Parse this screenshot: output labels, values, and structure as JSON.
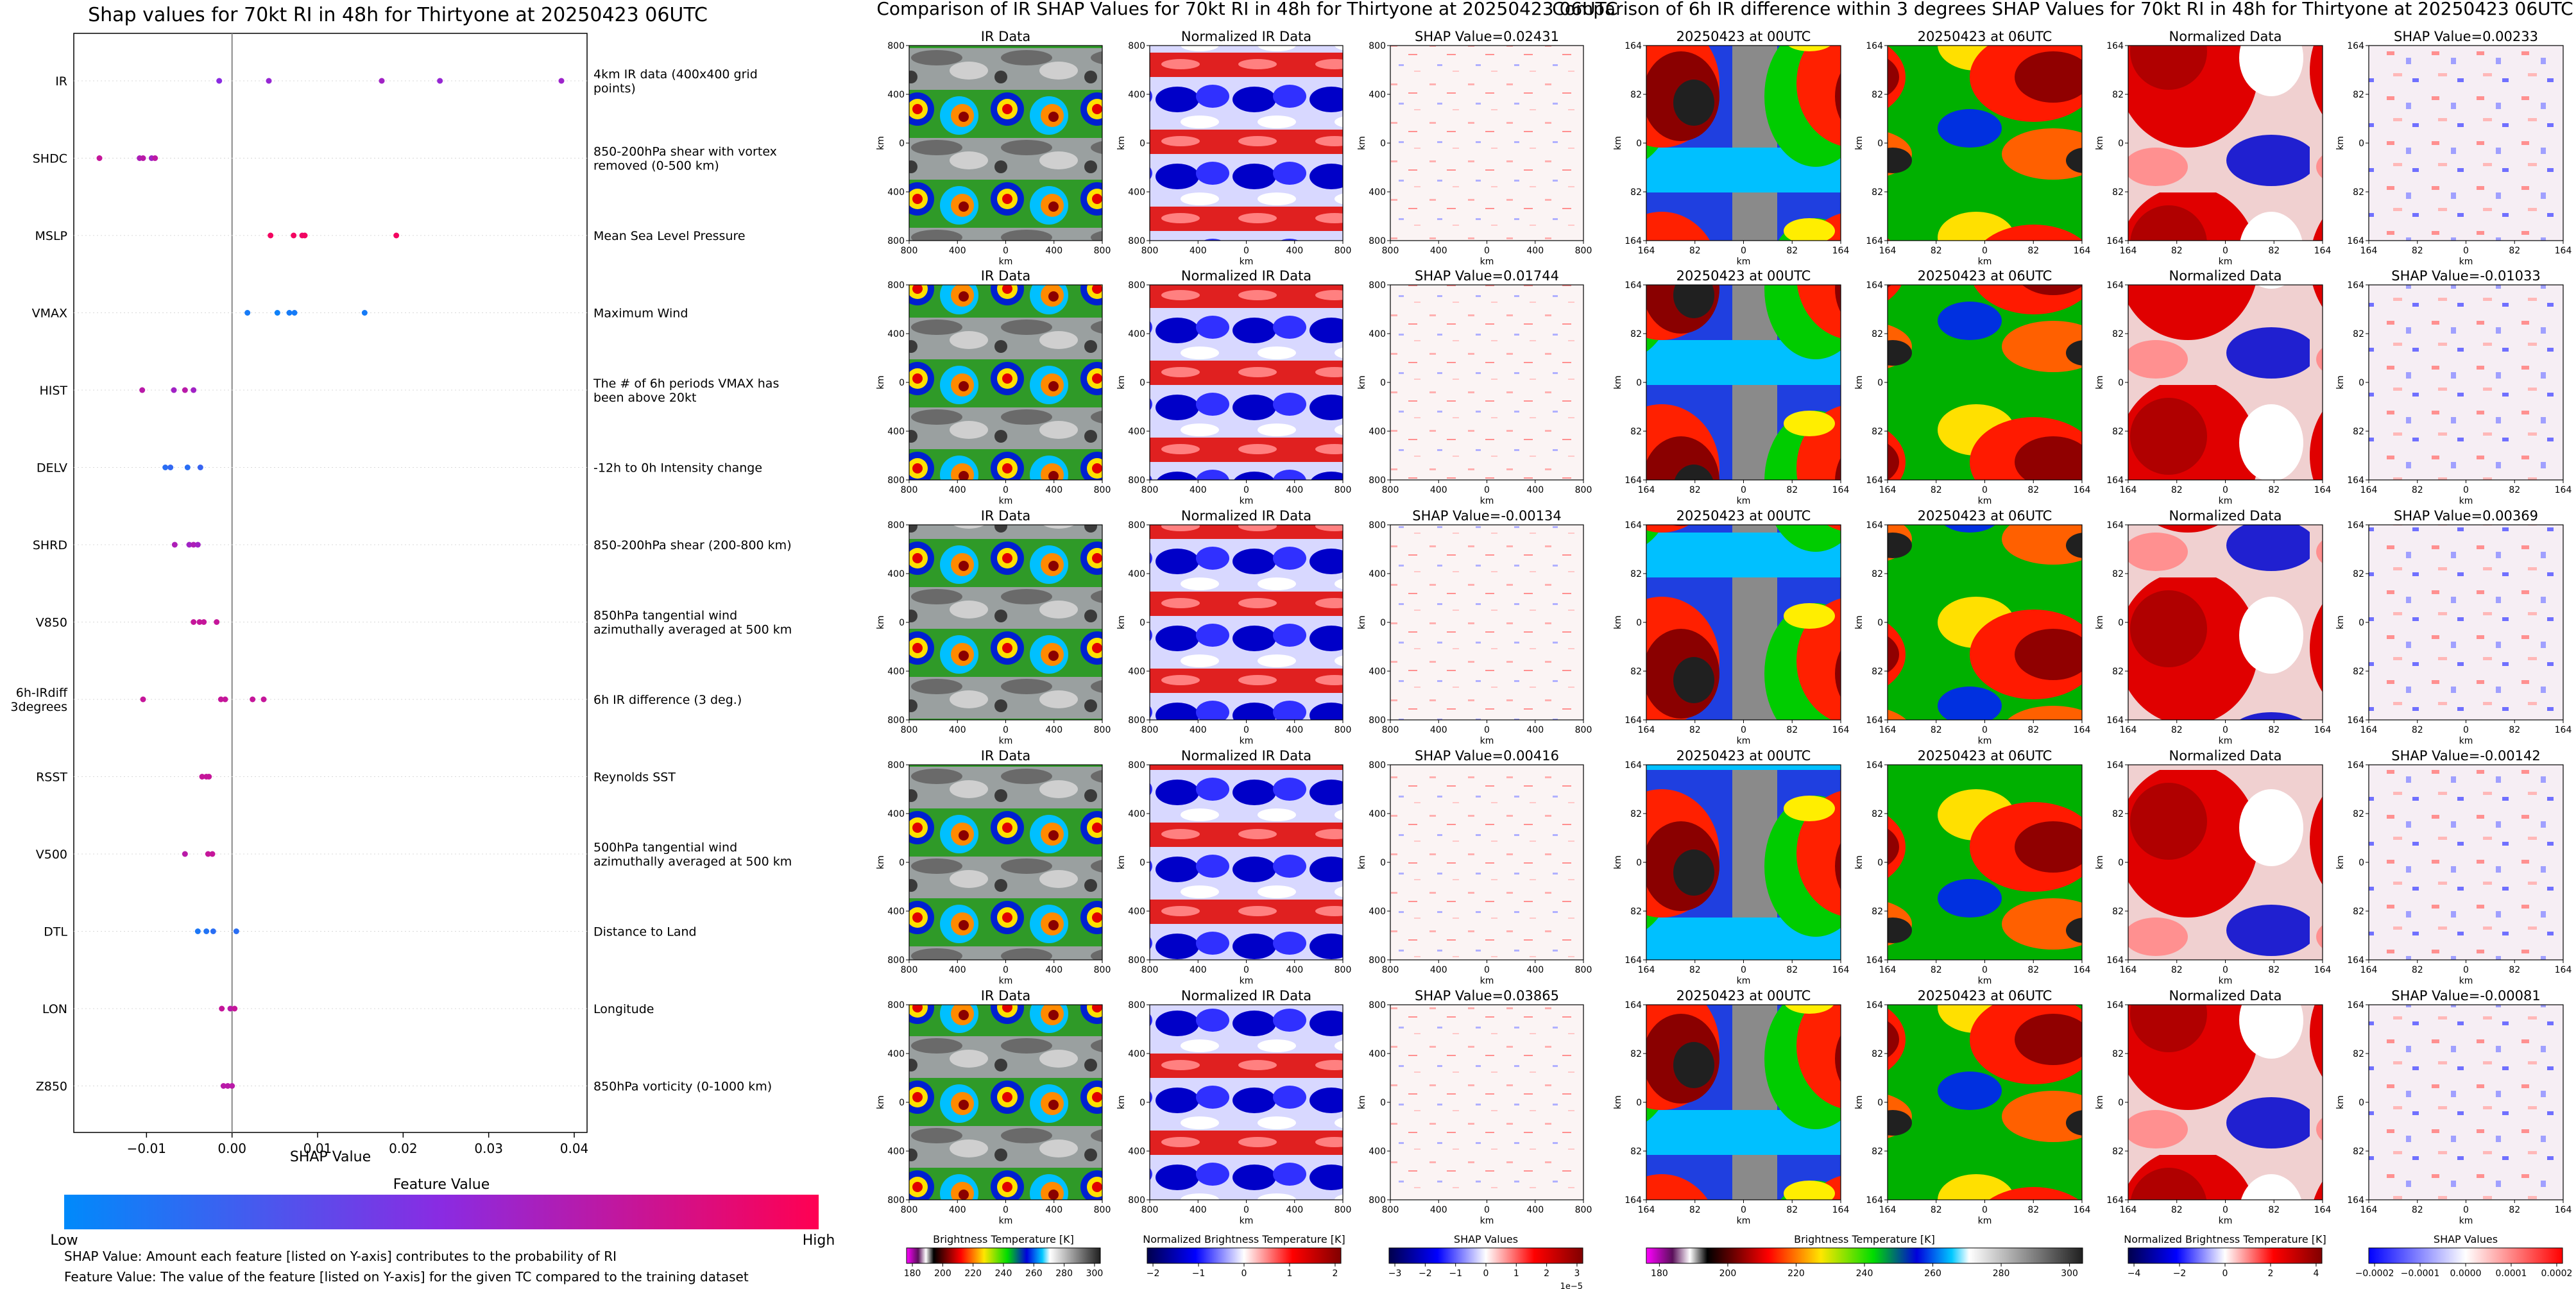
{
  "chart_data": [
    {
      "type": "scatter",
      "title": "Shap values for 70kt RI in 48h for Thirtyone at 20250423 06UTC",
      "xlabel": "SHAP Value",
      "xlim": [
        -0.0185,
        0.0415
      ],
      "xticks": [
        -0.01,
        0.0,
        0.01,
        0.02,
        0.03,
        0.04
      ],
      "xtick_labels": [
        "−0.01",
        "0.00",
        "0.01",
        "0.02",
        "0.03",
        "0.04"
      ],
      "zero_line": 0.0,
      "features": [
        {
          "name": "IR",
          "description": "4km IR data (400x400 grid points)",
          "points": [
            {
              "x": -0.0015,
              "c": 0.5
            },
            {
              "x": 0.0043,
              "c": 0.55
            },
            {
              "x": 0.0175,
              "c": 0.6
            },
            {
              "x": 0.0243,
              "c": 0.55
            },
            {
              "x": 0.0385,
              "c": 0.58
            }
          ]
        },
        {
          "name": "SHDC",
          "description": "850-200hPa shear with vortex removed (0-500 km)",
          "points": [
            {
              "x": -0.0155,
              "c": 0.75
            },
            {
              "x": -0.0108,
              "c": 0.65
            },
            {
              "x": -0.0104,
              "c": 0.7
            },
            {
              "x": -0.0094,
              "c": 0.6
            },
            {
              "x": -0.009,
              "c": 0.72
            }
          ]
        },
        {
          "name": "MSLP",
          "description": "Mean Sea Level Pressure",
          "points": [
            {
              "x": 0.0045,
              "c": 0.95
            },
            {
              "x": 0.0072,
              "c": 0.95
            },
            {
              "x": 0.0082,
              "c": 0.92
            },
            {
              "x": 0.0085,
              "c": 0.95
            },
            {
              "x": 0.0192,
              "c": 0.95
            }
          ]
        },
        {
          "name": "VMAX",
          "description": "Maximum Wind",
          "points": [
            {
              "x": 0.0018,
              "c": 0.08
            },
            {
              "x": 0.0053,
              "c": 0.05
            },
            {
              "x": 0.0067,
              "c": 0.08
            },
            {
              "x": 0.0073,
              "c": 0.08
            },
            {
              "x": 0.0155,
              "c": 0.08
            }
          ]
        },
        {
          "name": "HIST",
          "description": "The # of 6h periods VMAX has been above 20kt",
          "points": [
            {
              "x": -0.0105,
              "c": 0.7
            },
            {
              "x": -0.0068,
              "c": 0.6
            },
            {
              "x": -0.0055,
              "c": 0.7
            },
            {
              "x": -0.0045,
              "c": 0.6
            }
          ]
        },
        {
          "name": "DELV",
          "description": "-12h to 0h Intensity change",
          "points": [
            {
              "x": -0.0078,
              "c": 0.15
            },
            {
              "x": -0.0072,
              "c": 0.18
            },
            {
              "x": -0.0052,
              "c": 0.15
            },
            {
              "x": -0.0037,
              "c": 0.2
            }
          ]
        },
        {
          "name": "SHRD",
          "description": "850-200hPa shear (200-800 km)",
          "points": [
            {
              "x": -0.0067,
              "c": 0.65
            },
            {
              "x": -0.005,
              "c": 0.6
            },
            {
              "x": -0.0045,
              "c": 0.65
            },
            {
              "x": -0.004,
              "c": 0.6
            }
          ]
        },
        {
          "name": "V850",
          "description": "850hPa tangential wind azimuthally averaged at 500 km",
          "points": [
            {
              "x": -0.0045,
              "c": 0.75
            },
            {
              "x": -0.0038,
              "c": 0.75
            },
            {
              "x": -0.0033,
              "c": 0.75
            },
            {
              "x": -0.0018,
              "c": 0.75
            }
          ]
        },
        {
          "name": "6h-IRdiff 3degrees",
          "description": "6h IR difference (3 deg.)",
          "points": [
            {
              "x": -0.0104,
              "c": 0.75
            },
            {
              "x": -0.0013,
              "c": 0.75
            },
            {
              "x": -0.0008,
              "c": 0.75
            },
            {
              "x": 0.0024,
              "c": 0.75
            },
            {
              "x": 0.0037,
              "c": 0.75
            }
          ]
        },
        {
          "name": "RSST",
          "description": "Reynolds SST",
          "points": [
            {
              "x": -0.0035,
              "c": 0.75
            },
            {
              "x": -0.003,
              "c": 0.75
            },
            {
              "x": -0.0027,
              "c": 0.75
            }
          ]
        },
        {
          "name": "V500",
          "description": "500hPa tangential wind azimuthally averaged at 500 km",
          "points": [
            {
              "x": -0.0055,
              "c": 0.7
            },
            {
              "x": -0.0028,
              "c": 0.75
            },
            {
              "x": -0.0023,
              "c": 0.75
            }
          ]
        },
        {
          "name": "DTL",
          "description": "Distance to Land",
          "points": [
            {
              "x": -0.004,
              "c": 0.1
            },
            {
              "x": -0.003,
              "c": 0.12
            },
            {
              "x": -0.0022,
              "c": 0.15
            },
            {
              "x": 0.0005,
              "c": 0.15
            }
          ]
        },
        {
          "name": "LON",
          "description": "Longitude",
          "points": [
            {
              "x": -0.0012,
              "c": 0.75
            },
            {
              "x": -0.0002,
              "c": 0.7
            },
            {
              "x": 0.0003,
              "c": 0.75
            }
          ]
        },
        {
          "name": "Z850",
          "description": "850hPa vorticity (0-1000 km)",
          "points": [
            {
              "x": -0.001,
              "c": 0.7
            },
            {
              "x": -0.0005,
              "c": 0.7
            },
            {
              "x": 0.0,
              "c": 0.7
            }
          ]
        }
      ],
      "colorbar": {
        "title": "Feature Value",
        "low_label": "Low",
        "high_label": "High",
        "low_color": "#008afb",
        "mid_color": "#8a2be2",
        "high_color": "#ff0052"
      },
      "notes": [
        "SHAP Value: Amount each feature [listed on Y-axis] contributes to the probability of RI",
        "Feature Value: The value of the feature [listed on Y-axis] for the given TC compared to the training dataset"
      ]
    },
    {
      "type": "heatmap",
      "title": "Comparison of IR SHAP Values for 70kt RI in 48h for Thirtyone at 20250423 06UTC",
      "panel_titles": [
        "IR Data",
        "Normalized IR Data"
      ],
      "shap_titles": [
        "SHAP Value=0.02431",
        "SHAP Value=0.01744",
        "SHAP Value=-0.00134",
        "SHAP Value=0.00416",
        "SHAP Value=0.03865"
      ],
      "xlabel": "km",
      "ylabel": "km",
      "xticks": [
        "800",
        "400",
        "0",
        "400",
        "800"
      ],
      "yticks": [
        "800",
        "400",
        "0",
        "400",
        "800"
      ],
      "colorbars": [
        {
          "label": "Brightness Temperature [K]",
          "ticks": [
            "180",
            "200",
            "220",
            "240",
            "260",
            "280",
            "300"
          ]
        },
        {
          "label": "Normalized Brightness Temperature [K]",
          "ticks": [
            "−2",
            "−1",
            "0",
            "1",
            "2"
          ]
        },
        {
          "label": "SHAP Values",
          "ticks": [
            "−3",
            "−2",
            "−1",
            "0",
            "1",
            "2",
            "3"
          ],
          "offset": "1e−5"
        }
      ]
    },
    {
      "type": "heatmap",
      "title": "Comparison of 6h IR difference within 3 degrees SHAP Values for 70kt RI in 48h for Thirtyone at 20250423 06UTC",
      "panel_titles": [
        "20250423 at 00UTC",
        "20250423 at 06UTC",
        "Normalized Data"
      ],
      "shap_titles": [
        "SHAP Value=0.00233",
        "SHAP Value=-0.01033",
        "SHAP Value=0.00369",
        "SHAP Value=-0.00142",
        "SHAP Value=-0.00081"
      ],
      "xlabel": "km",
      "ylabel": "km",
      "xticks": [
        "164",
        "82",
        "0",
        "82",
        "164"
      ],
      "yticks": [
        "164",
        "82",
        "0",
        "82",
        "164"
      ],
      "colorbars": [
        {
          "label": "Brightness Temperature [K]",
          "ticks": [
            "180",
            "200",
            "220",
            "240",
            "260",
            "280",
            "300"
          ]
        },
        {
          "label": "Normalized Brightness Temperature [K]",
          "ticks": [
            "−4",
            "−2",
            "0",
            "2",
            "4"
          ]
        },
        {
          "label": "SHAP Values",
          "ticks": [
            "−0.0002",
            "−0.0001",
            "0.0000",
            "0.0001",
            "0.0002"
          ]
        }
      ]
    }
  ]
}
